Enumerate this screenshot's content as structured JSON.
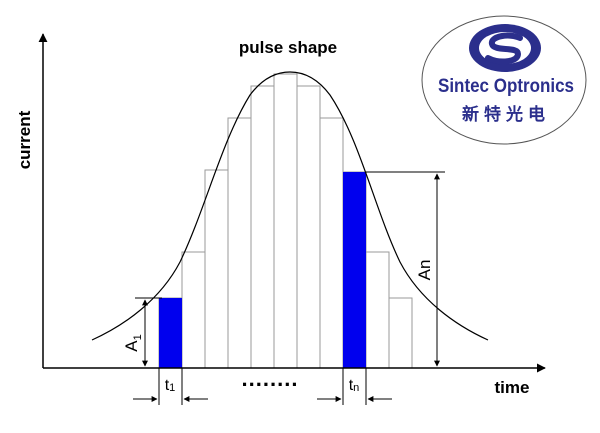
{
  "diagram": {
    "title": "pulse shape",
    "y_axis_label": "current",
    "x_axis_label": "time",
    "left_amplitude": {
      "letter": "A",
      "subscript": "1"
    },
    "right_amplitude": {
      "letter": "An"
    },
    "left_width": {
      "letter": "t",
      "subscript": "1"
    },
    "right_width": {
      "letter": "t",
      "subscript": "n"
    },
    "ellipsis": "........",
    "highlight_color": "#0000ee",
    "line_color": "#000000",
    "grid_color": "#999999"
  },
  "logo": {
    "company_en": "Sintec Optronics",
    "company_cn": "新特光电",
    "brand_color": "#2b2f8c",
    "emblem": "s-swirl-emblem"
  }
}
